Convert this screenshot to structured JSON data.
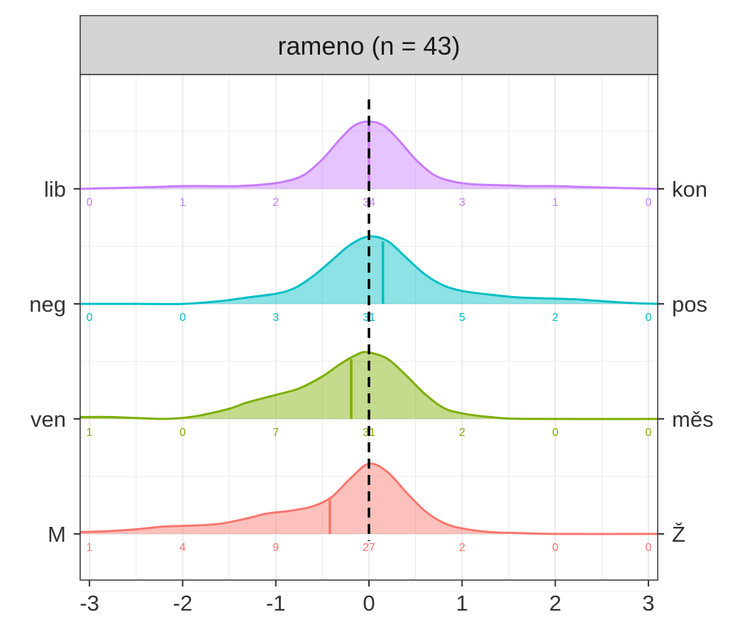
{
  "chart_data": {
    "type": "ridgeline-density",
    "title": "rameno (n = 43)",
    "xlabel": "",
    "ylabel": "",
    "xlim": [
      -3.1,
      3.1
    ],
    "x_ticks": [
      -3,
      -2,
      -1,
      0,
      1,
      2,
      3
    ],
    "x_tick_labels": [
      "-3",
      "-2",
      "-1",
      "0",
      "1",
      "2",
      "3"
    ],
    "count_positions": [
      -3,
      -2,
      -1,
      0,
      1,
      2,
      3
    ],
    "reference_line_x": 0,
    "grid": true,
    "series": [
      {
        "left_label": "M",
        "right_label": "Ž",
        "color": "#F8766D",
        "counts": [
          "1",
          "4",
          "9",
          "27",
          "2",
          "0",
          "0"
        ],
        "median": -0.42,
        "density": [
          [
            -3.1,
            0.02
          ],
          [
            -2.8,
            0.03
          ],
          [
            -2.5,
            0.05
          ],
          [
            -2.2,
            0.08
          ],
          [
            -1.9,
            0.09
          ],
          [
            -1.6,
            0.11
          ],
          [
            -1.3,
            0.17
          ],
          [
            -1.1,
            0.22
          ],
          [
            -0.85,
            0.25
          ],
          [
            -0.6,
            0.3
          ],
          [
            -0.4,
            0.4
          ],
          [
            -0.2,
            0.6
          ],
          [
            0,
            0.76
          ],
          [
            0.2,
            0.67
          ],
          [
            0.4,
            0.45
          ],
          [
            0.6,
            0.25
          ],
          [
            0.8,
            0.12
          ],
          [
            1.0,
            0.06
          ],
          [
            1.3,
            0.02
          ],
          [
            1.6,
            0.01
          ],
          [
            2.0,
            0.0
          ],
          [
            3.1,
            0.0
          ]
        ]
      },
      {
        "left_label": "ven",
        "right_label": "měs",
        "color": "#7CAE00",
        "counts": [
          "1",
          "0",
          "7",
          "31",
          "2",
          "0",
          "0"
        ],
        "median": -0.19,
        "density": [
          [
            -3.1,
            0.02
          ],
          [
            -2.8,
            0.02
          ],
          [
            -2.5,
            0.01
          ],
          [
            -2.2,
            0.0
          ],
          [
            -2.0,
            0.01
          ],
          [
            -1.8,
            0.04
          ],
          [
            -1.5,
            0.11
          ],
          [
            -1.3,
            0.18
          ],
          [
            -1.0,
            0.26
          ],
          [
            -0.75,
            0.33
          ],
          [
            -0.5,
            0.46
          ],
          [
            -0.3,
            0.6
          ],
          [
            -0.1,
            0.71
          ],
          [
            0,
            0.72
          ],
          [
            0.2,
            0.65
          ],
          [
            0.4,
            0.47
          ],
          [
            0.6,
            0.27
          ],
          [
            0.8,
            0.12
          ],
          [
            1.0,
            0.06
          ],
          [
            1.3,
            0.02
          ],
          [
            1.7,
            0.0
          ],
          [
            3.1,
            0.0
          ]
        ]
      },
      {
        "left_label": "neg",
        "right_label": "pos",
        "color": "#00BFC4",
        "counts": [
          "0",
          "0",
          "3",
          "31",
          "5",
          "2",
          "0"
        ],
        "median": 0.15,
        "density": [
          [
            -3.1,
            0.0
          ],
          [
            -2.5,
            0.0
          ],
          [
            -2.0,
            0.0
          ],
          [
            -1.6,
            0.03
          ],
          [
            -1.3,
            0.07
          ],
          [
            -1.0,
            0.11
          ],
          [
            -0.8,
            0.17
          ],
          [
            -0.6,
            0.3
          ],
          [
            -0.4,
            0.47
          ],
          [
            -0.2,
            0.64
          ],
          [
            0,
            0.73
          ],
          [
            0.2,
            0.68
          ],
          [
            0.4,
            0.5
          ],
          [
            0.6,
            0.32
          ],
          [
            0.8,
            0.2
          ],
          [
            1.0,
            0.14
          ],
          [
            1.3,
            0.1
          ],
          [
            1.6,
            0.07
          ],
          [
            1.9,
            0.06
          ],
          [
            2.2,
            0.05
          ],
          [
            2.5,
            0.03
          ],
          [
            2.8,
            0.01
          ],
          [
            3.1,
            0.0
          ]
        ]
      },
      {
        "left_label": "lib",
        "right_label": "kon",
        "color": "#C77CFF",
        "counts": [
          "0",
          "1",
          "2",
          "34",
          "3",
          "1",
          "0"
        ],
        "median": 0.0,
        "density": [
          [
            -3.1,
            0.0
          ],
          [
            -2.7,
            0.01
          ],
          [
            -2.3,
            0.02
          ],
          [
            -2.0,
            0.03
          ],
          [
            -1.7,
            0.03
          ],
          [
            -1.4,
            0.03
          ],
          [
            -1.1,
            0.05
          ],
          [
            -0.9,
            0.08
          ],
          [
            -0.7,
            0.15
          ],
          [
            -0.5,
            0.32
          ],
          [
            -0.3,
            0.55
          ],
          [
            -0.15,
            0.69
          ],
          [
            0,
            0.73
          ],
          [
            0.15,
            0.69
          ],
          [
            0.3,
            0.55
          ],
          [
            0.5,
            0.32
          ],
          [
            0.7,
            0.15
          ],
          [
            0.9,
            0.08
          ],
          [
            1.1,
            0.05
          ],
          [
            1.4,
            0.04
          ],
          [
            1.7,
            0.03
          ],
          [
            2.0,
            0.03
          ],
          [
            2.3,
            0.02
          ],
          [
            2.7,
            0.01
          ],
          [
            3.1,
            0.0
          ]
        ]
      }
    ]
  }
}
